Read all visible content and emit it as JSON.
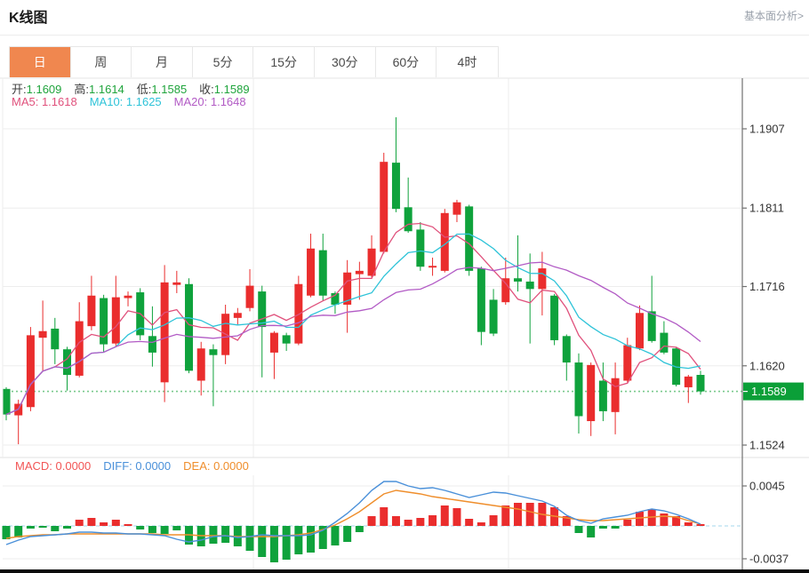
{
  "header": {
    "title": "K线图",
    "link_label": "基本面分析>"
  },
  "tabs": [
    {
      "key": "tab-day",
      "label": "日",
      "active": true
    },
    {
      "key": "tab-week",
      "label": "周",
      "active": false
    },
    {
      "key": "tab-month",
      "label": "月",
      "active": false
    },
    {
      "key": "tab-5min",
      "label": "5分",
      "active": false
    },
    {
      "key": "tab-15min",
      "label": "15分",
      "active": false
    },
    {
      "key": "tab-30min",
      "label": "30分",
      "active": false
    },
    {
      "key": "tab-60min",
      "label": "60分",
      "active": false
    },
    {
      "key": "tab-4hour",
      "label": "4时",
      "active": false
    }
  ],
  "quote": {
    "open_label": "开:",
    "open": "1.1609",
    "high_label": "高:",
    "high": "1.1614",
    "low_label": "低:",
    "low": "1.1585",
    "close_label": "收:",
    "close": "1.1589",
    "value_color": "#1fa43c"
  },
  "ma_legend": [
    {
      "name": "ma5-legend",
      "label": "MA5:",
      "value": "1.1618",
      "color": "#e0517c"
    },
    {
      "name": "ma10-legend",
      "label": "MA10:",
      "value": "1.1625",
      "color": "#2ec3d8"
    },
    {
      "name": "ma20-legend",
      "label": "MA20:",
      "value": "1.1648",
      "color": "#b25bc5"
    }
  ],
  "macd_legend": [
    {
      "name": "macd-value-legend",
      "label": "MACD:",
      "value": "0.0000",
      "color": "#f25555"
    },
    {
      "name": "diff-value-legend",
      "label": "DIFF:",
      "value": "0.0000",
      "color": "#4a90d9"
    },
    {
      "name": "dea-value-legend",
      "label": "DEA:",
      "value": "0.0000",
      "color": "#ef8e2c"
    }
  ],
  "colors": {
    "up": "#ea2d2d",
    "down": "#0fa23c",
    "ma5": "#e0517c",
    "ma10": "#2ec3d8",
    "ma20": "#b25bc5",
    "diff_line": "#4a90d9",
    "dea_line": "#ef8e2c",
    "grid": "#ededed",
    "axis": "#707070",
    "axis_text": "#333333",
    "price_badge": "#0b9f38",
    "price_dotted": "#79c98c",
    "zero_dashed": "#a6d7ee",
    "tab_active": "#f0874f",
    "bottom_bar": "#0a0a0a"
  },
  "chart_data": [
    {
      "type": "candlestick",
      "panel": "price",
      "title": "K线图 日线",
      "y_axis_labels": [
        "1.1907",
        "1.1811",
        "1.1716",
        "1.1620",
        "1.1524"
      ],
      "y_axis_values": [
        1.1907,
        1.1811,
        1.1716,
        1.162,
        1.1524
      ],
      "ylim": [
        1.1524,
        1.1907
      ],
      "current_price": 1.1589,
      "current_price_label": "1.1589",
      "grid": true,
      "vertical_gridlines_x": [
        285,
        572
      ],
      "ma_periods": [
        5,
        10,
        20
      ],
      "legend": [
        "MA5",
        "MA10",
        "MA20"
      ],
      "candles_ohlc": [
        [
          1.1592,
          1.1594,
          1.1554,
          1.1561
        ],
        [
          1.156,
          1.1579,
          1.1525,
          1.1574
        ],
        [
          1.157,
          1.1667,
          1.1565,
          1.1657
        ],
        [
          1.1654,
          1.1699,
          1.1614,
          1.1662
        ],
        [
          1.1665,
          1.1678,
          1.1622,
          1.164
        ],
        [
          1.164,
          1.1643,
          1.159,
          1.1609
        ],
        [
          1.1608,
          1.1697,
          1.1606,
          1.1674
        ],
        [
          1.1668,
          1.1729,
          1.1663,
          1.1705
        ],
        [
          1.1702,
          1.1706,
          1.1636,
          1.1646
        ],
        [
          1.1647,
          1.1729,
          1.1643,
          1.1703
        ],
        [
          1.1702,
          1.171,
          1.1692,
          1.1705
        ],
        [
          1.1709,
          1.1714,
          1.1651,
          1.1657
        ],
        [
          1.1656,
          1.1692,
          1.1619,
          1.1636
        ],
        [
          1.16,
          1.1742,
          1.1576,
          1.1721
        ],
        [
          1.1718,
          1.1735,
          1.1708,
          1.1721
        ],
        [
          1.1719,
          1.1726,
          1.1611,
          1.1614
        ],
        [
          1.1602,
          1.1649,
          1.1584,
          1.1641
        ],
        [
          1.164,
          1.1646,
          1.1571,
          1.1633
        ],
        [
          1.1633,
          1.1694,
          1.1622,
          1.1683
        ],
        [
          1.1678,
          1.169,
          1.167,
          1.1684
        ],
        [
          1.169,
          1.1737,
          1.1686,
          1.1717
        ],
        [
          1.171,
          1.1717,
          1.1606,
          1.1667
        ],
        [
          1.1636,
          1.1662,
          1.1604,
          1.166
        ],
        [
          1.1657,
          1.166,
          1.1638,
          1.1647
        ],
        [
          1.1647,
          1.1729,
          1.1645,
          1.1719
        ],
        [
          1.1705,
          1.178,
          1.1703,
          1.1762
        ],
        [
          1.176,
          1.178,
          1.1699,
          1.1705
        ],
        [
          1.1708,
          1.171,
          1.1683,
          1.1694
        ],
        [
          1.1694,
          1.1748,
          1.166,
          1.1733
        ],
        [
          1.1731,
          1.1746,
          1.17,
          1.1735
        ],
        [
          1.1729,
          1.1778,
          1.1727,
          1.1762
        ],
        [
          1.1758,
          1.1878,
          1.1756,
          1.1867
        ],
        [
          1.1866,
          1.1921,
          1.1806,
          1.181
        ],
        [
          1.1812,
          1.1848,
          1.1781,
          1.1783
        ],
        [
          1.1785,
          1.1794,
          1.1735,
          1.174
        ],
        [
          1.1739,
          1.1751,
          1.1729,
          1.1741
        ],
        [
          1.1735,
          1.181,
          1.1733,
          1.1805
        ],
        [
          1.1803,
          1.1821,
          1.1794,
          1.1818
        ],
        [
          1.1813,
          1.1815,
          1.1729,
          1.1735
        ],
        [
          1.1738,
          1.174,
          1.1645,
          1.1661
        ],
        [
          1.17,
          1.1713,
          1.1656,
          1.1659
        ],
        [
          1.1697,
          1.1751,
          1.1694,
          1.1726
        ],
        [
          1.1726,
          1.1778,
          1.171,
          1.1722
        ],
        [
          1.1722,
          1.1756,
          1.1647,
          1.1713
        ],
        [
          1.1713,
          1.1758,
          1.1681,
          1.1738
        ],
        [
          1.1705,
          1.1707,
          1.1645,
          1.1651
        ],
        [
          1.1656,
          1.1658,
          1.1602,
          1.1624
        ],
        [
          1.1624,
          1.1635,
          1.1538,
          1.1559
        ],
        [
          1.1553,
          1.1624,
          1.1535,
          1.1621
        ],
        [
          1.1602,
          1.1624,
          1.1553,
          1.1565
        ],
        [
          1.1564,
          1.1624,
          1.1537,
          1.1605
        ],
        [
          1.1602,
          1.1654,
          1.16,
          1.1645
        ],
        [
          1.1641,
          1.1693,
          1.1639,
          1.1684
        ],
        [
          1.1686,
          1.1729,
          1.1648,
          1.165
        ],
        [
          1.166,
          1.1674,
          1.1634,
          1.1636
        ],
        [
          1.1641,
          1.1643,
          1.1595,
          1.1597
        ],
        [
          1.1594,
          1.1609,
          1.1575,
          1.1607
        ],
        [
          1.1609,
          1.1614,
          1.1585,
          1.1589
        ]
      ]
    },
    {
      "type": "macd",
      "panel": "indicator",
      "y_axis_labels": [
        "0.0045",
        "-0.0037"
      ],
      "y_axis_values": [
        0.0045,
        -0.0037
      ],
      "zero_line": 0,
      "histogram": [
        -0.0015,
        -0.0013,
        -0.0003,
        -0.0002,
        -0.0006,
        -0.0003,
        0.0007,
        0.0009,
        0.0004,
        0.0007,
        0.0002,
        -0.0004,
        -0.0008,
        -0.0009,
        -0.0005,
        -0.0021,
        -0.0023,
        -0.002,
        -0.0019,
        -0.0023,
        -0.0028,
        -0.0035,
        -0.0041,
        -0.0038,
        -0.0032,
        -0.003,
        -0.0026,
        -0.0022,
        -0.0018,
        -0.0007,
        0.0011,
        0.0021,
        0.0011,
        0.0007,
        0.0009,
        0.0012,
        0.0023,
        0.002,
        0.0008,
        0.0004,
        0.0012,
        0.0023,
        0.0026,
        0.0026,
        0.0026,
        0.0021,
        0.0011,
        -0.0008,
        -0.0013,
        -0.0003,
        -0.0003,
        0.0007,
        0.0016,
        0.0019,
        0.0014,
        0.0011,
        0.0004,
        0.0002
      ],
      "diff": [
        -0.0021,
        -0.0016,
        -0.0012,
        -0.0011,
        -0.001,
        -0.0009,
        -0.0007,
        -0.0007,
        -0.0008,
        -0.0008,
        -0.0009,
        -0.0009,
        -0.001,
        -0.0011,
        -0.0015,
        -0.0018,
        -0.0016,
        -0.0012,
        -0.0011,
        -0.0013,
        -0.0012,
        -0.001,
        -0.0011,
        -0.0011,
        -0.0011,
        -0.001,
        -0.0005,
        0.0004,
        0.0014,
        0.0026,
        0.004,
        0.005,
        0.005,
        0.0045,
        0.0042,
        0.0043,
        0.004,
        0.0036,
        0.0032,
        0.0035,
        0.0038,
        0.0037,
        0.0034,
        0.0031,
        0.0028,
        0.0022,
        0.0012,
        0.0006,
        0.0003,
        0.0008,
        0.001,
        0.0012,
        0.0016,
        0.0019,
        0.0017,
        0.0013,
        0.0008,
        0.0002
      ],
      "dea": [
        -0.0014,
        -0.0012,
        -0.0011,
        -0.001,
        -0.001,
        -0.0009,
        -0.0009,
        -0.0009,
        -0.0009,
        -0.0009,
        -0.0009,
        -0.0009,
        -0.0009,
        -0.001,
        -0.001,
        -0.001,
        -0.0011,
        -0.0011,
        -0.0011,
        -0.0012,
        -0.0012,
        -0.0012,
        -0.0012,
        -0.0011,
        -0.001,
        -0.0008,
        -0.0004,
        0.0001,
        0.0008,
        0.0016,
        0.0026,
        0.0036,
        0.004,
        0.0038,
        0.0036,
        0.0033,
        0.0031,
        0.0029,
        0.0027,
        0.0025,
        0.0023,
        0.0021,
        0.0019,
        0.0016,
        0.0013,
        0.0011,
        0.0009,
        0.0007,
        0.0006,
        0.0006,
        0.0007,
        0.0008,
        0.0009,
        0.001,
        0.0011,
        0.001,
        0.0006,
        0.0002
      ]
    }
  ]
}
